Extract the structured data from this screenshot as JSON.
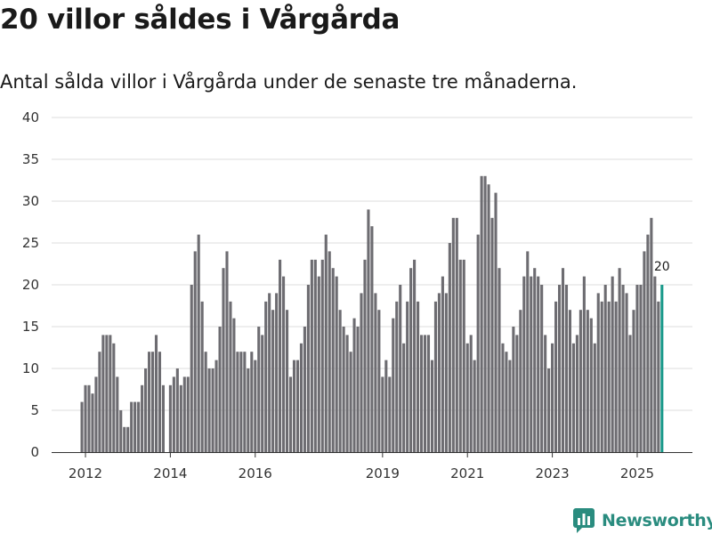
{
  "title": "20 villor såldes i Vårgårda",
  "subtitle": "Antal sålda villor i Vårgårda under de senaste tre månaderna.",
  "brand": {
    "name": "Newsworthy",
    "icon": "newsworthy-logo-icon",
    "color": "#2a8c7f"
  },
  "colors": {
    "bar": "#6d6c71",
    "highlight": "#1a9a8b",
    "grid": "#dddddd",
    "axis": "#333333"
  },
  "chart_data": {
    "type": "bar",
    "title": "20 villor såldes i Vårgårda",
    "xlabel": "",
    "ylabel": "",
    "ylim": [
      0,
      40
    ],
    "yticks": [
      0,
      5,
      10,
      15,
      20,
      25,
      30,
      35,
      40
    ],
    "x_tick_labels": [
      {
        "label": "2012",
        "index": 1
      },
      {
        "label": "2014",
        "index": 25
      },
      {
        "label": "2016",
        "index": 49
      },
      {
        "label": "2019",
        "index": 85
      },
      {
        "label": "2021",
        "index": 109
      },
      {
        "label": "2023",
        "index": 133
      },
      {
        "label": "2025",
        "index": 157
      }
    ],
    "values": [
      6,
      8,
      8,
      7,
      9,
      12,
      14,
      14,
      14,
      13,
      9,
      5,
      3,
      3,
      6,
      6,
      6,
      8,
      10,
      12,
      12,
      14,
      12,
      8,
      null,
      8,
      9,
      10,
      8,
      9,
      9,
      20,
      24,
      26,
      18,
      12,
      10,
      10,
      11,
      15,
      22,
      24,
      18,
      16,
      12,
      12,
      12,
      10,
      12,
      11,
      15,
      14,
      18,
      19,
      17,
      19,
      23,
      21,
      17,
      9,
      11,
      11,
      13,
      15,
      20,
      23,
      23,
      21,
      23,
      26,
      24,
      22,
      21,
      17,
      15,
      14,
      12,
      16,
      15,
      19,
      23,
      29,
      27,
      19,
      17,
      9,
      11,
      9,
      16,
      18,
      20,
      13,
      18,
      22,
      23,
      18,
      14,
      14,
      14,
      11,
      18,
      19,
      21,
      19,
      25,
      28,
      28,
      23,
      23,
      13,
      14,
      11,
      26,
      33,
      33,
      32,
      28,
      31,
      22,
      13,
      12,
      11,
      15,
      14,
      17,
      21,
      24,
      21,
      22,
      21,
      20,
      14,
      10,
      13,
      18,
      20,
      22,
      20,
      17,
      13,
      14,
      17,
      21,
      17,
      16,
      13,
      19,
      18,
      20,
      18,
      21,
      18,
      22,
      20,
      19,
      14,
      17,
      20,
      20,
      24,
      26,
      28,
      21,
      18,
      20
    ],
    "highlight_index": 164,
    "data_labels": [
      {
        "index": 164,
        "text": "20"
      }
    ]
  }
}
